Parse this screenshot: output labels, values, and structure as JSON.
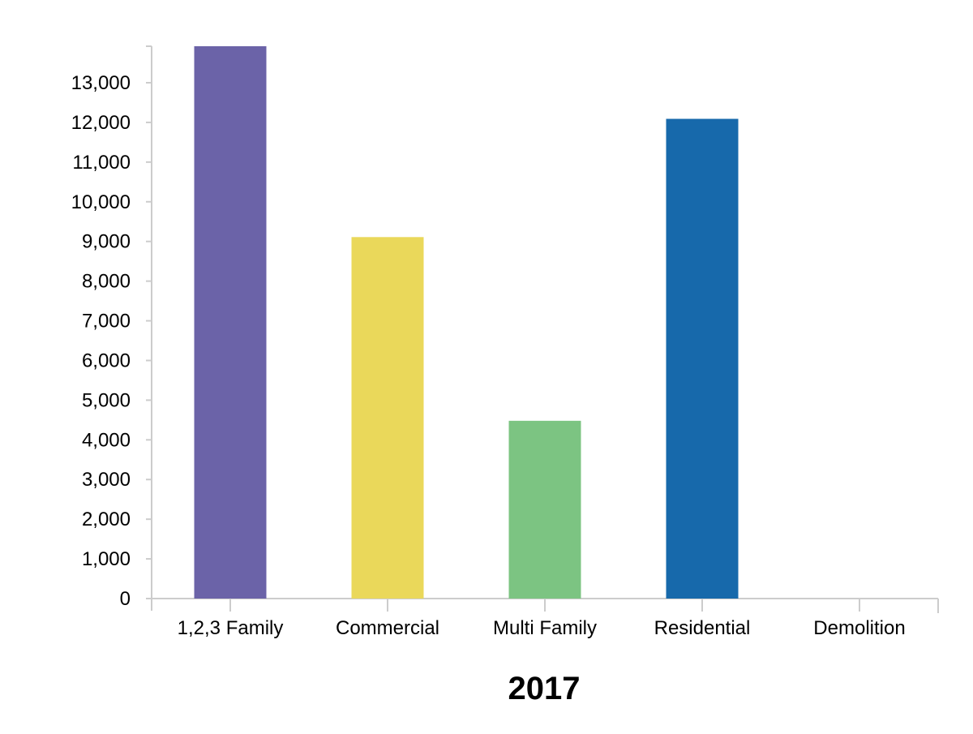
{
  "chart_data": {
    "type": "bar",
    "title": "",
    "xlabel": "2017",
    "ylabel": "",
    "categories": [
      "1,2,3 Family",
      "Commercial",
      "Multi Family",
      "Residential",
      "Demolition"
    ],
    "values": [
      13920,
      9110,
      4480,
      12090,
      0
    ],
    "colors": [
      "#6b63a8",
      "#ead85a",
      "#7cc482",
      "#1769ab",
      "#bbbbbb"
    ],
    "ylim": [
      0,
      13920
    ],
    "yticks": [
      0,
      1000,
      2000,
      3000,
      4000,
      5000,
      6000,
      7000,
      8000,
      9000,
      10000,
      11000,
      12000,
      13000
    ],
    "ytick_labels": [
      "0",
      "1,000",
      "2,000",
      "3,000",
      "4,000",
      "5,000",
      "6,000",
      "7,000",
      "8,000",
      "9,000",
      "10,000",
      "11,000",
      "12,000",
      "13,000"
    ],
    "grid": false,
    "axis_color": "#cccccc"
  }
}
